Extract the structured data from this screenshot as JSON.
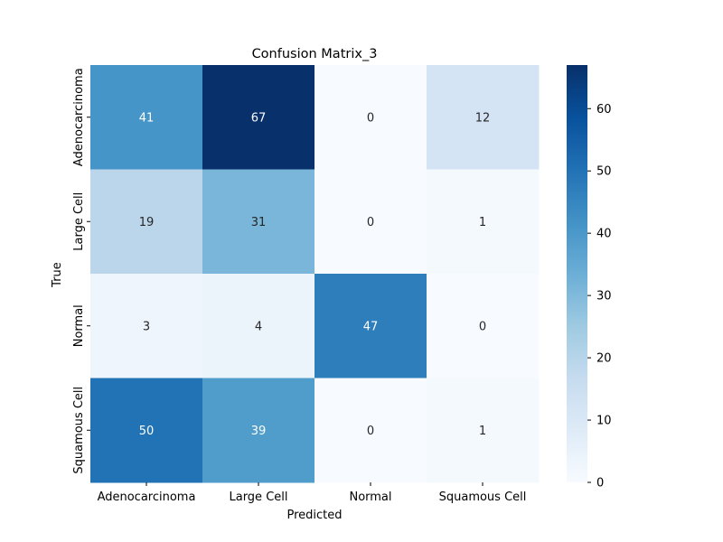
{
  "chart_data": {
    "type": "heatmap",
    "title": "Confusion Matrix_3",
    "xlabel": "Predicted",
    "ylabel": "True",
    "x_categories": [
      "Adenocarcinoma",
      "Large Cell",
      "Normal",
      "Squamous Cell"
    ],
    "y_categories": [
      "Adenocarcinoma",
      "Large Cell",
      "Normal",
      "Squamous Cell"
    ],
    "values": [
      [
        41,
        67,
        0,
        12
      ],
      [
        19,
        31,
        0,
        1
      ],
      [
        3,
        4,
        47,
        0
      ],
      [
        50,
        39,
        0,
        1
      ]
    ],
    "colormap": "Blues",
    "colorbar": {
      "min": 0,
      "max": 67,
      "ticks": [
        0,
        10,
        20,
        30,
        40,
        50,
        60
      ]
    }
  }
}
